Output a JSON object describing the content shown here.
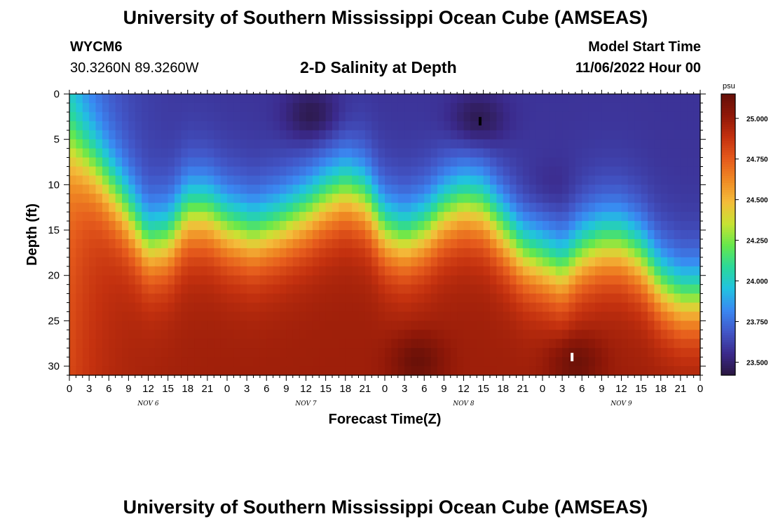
{
  "page": {
    "title_top": "University of Southern Mississippi Ocean Cube (AMSEAS)",
    "title_bottom": "University of Southern Mississippi Ocean Cube (AMSEAS)",
    "station_id": "WYCM6",
    "station_coords": "30.3260N  89.3260W",
    "subtitle": "2-D Salinity at Depth",
    "model_start_label": "Model Start Time",
    "model_start_value": "11/06/2022 Hour 00"
  },
  "chart_data": {
    "type": "heatmap",
    "title": "2-D Salinity at Depth",
    "xlabel": "Forecast Time(Z)",
    "ylabel": "Depth (ft)",
    "x_hours_range": [
      0,
      96
    ],
    "x_tick_labels": [
      "0",
      "3",
      "6",
      "9",
      "12",
      "15",
      "18",
      "21",
      "0",
      "3",
      "6",
      "9",
      "12",
      "15",
      "18",
      "21",
      "0",
      "3",
      "6",
      "9",
      "12",
      "15",
      "18",
      "21",
      "0",
      "3",
      "6",
      "9",
      "12",
      "15",
      "18",
      "21",
      "0"
    ],
    "day_labels": [
      {
        "label": "NOV 6",
        "hour": 12
      },
      {
        "label": "NOV 7",
        "hour": 36
      },
      {
        "label": "NOV 8",
        "hour": 60
      },
      {
        "label": "NOV 9",
        "hour": 84
      }
    ],
    "y_range": [
      0,
      31
    ],
    "y_ticks": [
      0,
      5,
      10,
      15,
      20,
      25,
      30
    ],
    "colorbar": {
      "unit": "psu",
      "min": 23.42,
      "max": 25.15,
      "ticks": [
        "23.500",
        "23.750",
        "24.000",
        "24.250",
        "24.500",
        "24.750",
        "25.000"
      ],
      "tick_values": [
        23.5,
        23.75,
        24.0,
        24.25,
        24.5,
        24.75,
        25.0
      ],
      "colors": [
        "#2a1640",
        "#3b2a8c",
        "#4257c8",
        "#3a88f2",
        "#21c3e0",
        "#2bd89a",
        "#66e84c",
        "#c8e233",
        "#f4bc3a",
        "#f08a24",
        "#e55a1c",
        "#c4310f",
        "#8f1808",
        "#651008"
      ]
    },
    "halocline_depth_ft": [
      {
        "hour": 0,
        "depth": 5.0
      },
      {
        "hour": 4,
        "depth": 8.0
      },
      {
        "hour": 8,
        "depth": 12.0
      },
      {
        "hour": 12,
        "depth": 16.5
      },
      {
        "hour": 15,
        "depth": 16.0
      },
      {
        "hour": 18,
        "depth": 13.0
      },
      {
        "hour": 21,
        "depth": 13.0
      },
      {
        "hour": 24,
        "depth": 14.5
      },
      {
        "hour": 28,
        "depth": 15.5
      },
      {
        "hour": 32,
        "depth": 14.5
      },
      {
        "hour": 36,
        "depth": 13.0
      },
      {
        "hour": 39,
        "depth": 11.5
      },
      {
        "hour": 42,
        "depth": 10.5
      },
      {
        "hour": 45,
        "depth": 11.5
      },
      {
        "hour": 48,
        "depth": 15.0
      },
      {
        "hour": 51,
        "depth": 16.0
      },
      {
        "hour": 54,
        "depth": 15.0
      },
      {
        "hour": 57,
        "depth": 13.0
      },
      {
        "hour": 60,
        "depth": 12.0
      },
      {
        "hour": 63,
        "depth": 12.5
      },
      {
        "hour": 66,
        "depth": 15.0
      },
      {
        "hour": 69,
        "depth": 17.5
      },
      {
        "hour": 72,
        "depth": 18.5
      },
      {
        "hour": 75,
        "depth": 19.5
      },
      {
        "hour": 78,
        "depth": 17.5
      },
      {
        "hour": 81,
        "depth": 16.5
      },
      {
        "hour": 84,
        "depth": 16.5
      },
      {
        "hour": 87,
        "depth": 18.0
      },
      {
        "hour": 90,
        "depth": 21.0
      },
      {
        "hour": 93,
        "depth": 22.5
      },
      {
        "hour": 96,
        "depth": 22.5
      }
    ],
    "surface_value": 23.58,
    "deep_value": 24.98,
    "left_edge_fresh_value": 23.95,
    "low_salinity_pockets": [
      {
        "hour": 37,
        "depth": 2.5,
        "value": 23.42
      },
      {
        "hour": 62,
        "depth": 3.0,
        "value": 23.42
      },
      {
        "hour": 73,
        "depth": 10.5,
        "value": 23.52
      }
    ],
    "high_salinity_pockets": [
      {
        "hour": 53,
        "depth": 29.5,
        "value": 25.14
      },
      {
        "hour": 77,
        "depth": 29.5,
        "value": 25.14
      }
    ],
    "markers": [
      {
        "hour": 62.5,
        "depth": 3.0,
        "color": "#000000"
      },
      {
        "hour": 76.5,
        "depth": 29.0,
        "color": "#ffffff"
      }
    ]
  }
}
